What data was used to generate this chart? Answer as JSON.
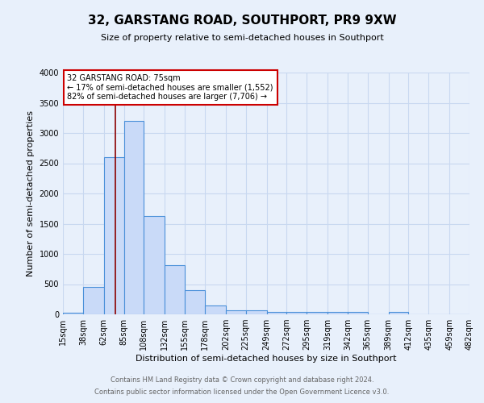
{
  "title": "32, GARSTANG ROAD, SOUTHPORT, PR9 9XW",
  "subtitle": "Size of property relative to semi-detached houses in Southport",
  "xlabel": "Distribution of semi-detached houses by size in Southport",
  "ylabel": "Number of semi-detached properties",
  "footer_line1": "Contains HM Land Registry data © Crown copyright and database right 2024.",
  "footer_line2": "Contains public sector information licensed under the Open Government Licence v3.0.",
  "property_label": "32 GARSTANG ROAD: 75sqm",
  "arrow_left": "← 17% of semi-detached houses are smaller (1,552)",
  "arrow_right": "82% of semi-detached houses are larger (7,706) →",
  "property_sqm": 75,
  "bin_edges": [
    15,
    38,
    62,
    85,
    108,
    132,
    155,
    178,
    202,
    225,
    249,
    272,
    295,
    319,
    342,
    365,
    389,
    412,
    435,
    459,
    482
  ],
  "bar_heights": [
    30,
    460,
    2600,
    3200,
    1630,
    810,
    405,
    150,
    70,
    65,
    35,
    35,
    35,
    35,
    35,
    5,
    35,
    5,
    5,
    5
  ],
  "bar_color": "#c9daf8",
  "bar_edge_color": "#4a90d9",
  "property_line_color": "#8b0000",
  "annotation_box_color": "#ffffff",
  "annotation_box_edge": "#cc0000",
  "grid_color": "#c8d8f0",
  "background_color": "#e8f0fb",
  "ylim": [
    0,
    4000
  ],
  "yticks": [
    0,
    500,
    1000,
    1500,
    2000,
    2500,
    3000,
    3500,
    4000
  ],
  "title_fontsize": 11,
  "subtitle_fontsize": 8,
  "ylabel_fontsize": 8,
  "xlabel_fontsize": 8,
  "tick_fontsize": 7,
  "footer_fontsize": 6
}
